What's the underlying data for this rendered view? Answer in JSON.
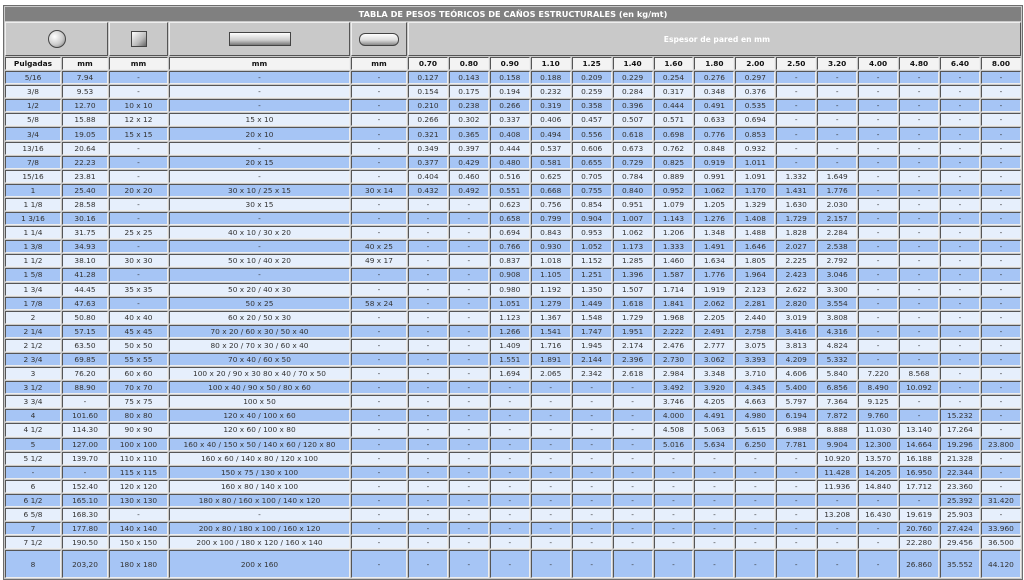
{
  "title": "TABLA DE PESOS TEÓRICOS DE CAÑOS ESTRUCTURALES (en kg/mt)",
  "icons": [
    "circle-profile-icon",
    "square-profile-icon",
    "rectangular-profile-icon",
    "oval-profile-icon"
  ],
  "espesor_label": "Espesor de pared en mm",
  "headers": {
    "pulgadas": "Pulgadas",
    "mm_redondo": "mm",
    "mm_cuadrado": "mm",
    "mm_rectangular": "mm",
    "mm_oval": "mm",
    "espesores": [
      "0.70",
      "0.80",
      "0.90",
      "1.10",
      "1.25",
      "1.40",
      "1.60",
      "1.80",
      "2.00",
      "2.50",
      "3.20",
      "4.00",
      "4.80",
      "6.40",
      "8.00"
    ]
  },
  "colors": {
    "row_odd": "#a6c5f5",
    "row_even": "#e6effc",
    "title_bg": "#808080",
    "header_bg": "#c9c9c9"
  },
  "rows": [
    {
      "pulgadas": "5/16",
      "mm": "7.94",
      "cuadrado": "-",
      "rectangular": "-",
      "oval": "-",
      "pesos": [
        "0.127",
        "0.143",
        "0.158",
        "0.188",
        "0.209",
        "0.229",
        "0.254",
        "0.276",
        "0.297",
        "-",
        "-",
        "-",
        "-",
        "-",
        "-"
      ]
    },
    {
      "pulgadas": "3/8",
      "mm": "9.53",
      "cuadrado": "-",
      "rectangular": "-",
      "oval": "-",
      "pesos": [
        "0.154",
        "0.175",
        "0.194",
        "0.232",
        "0.259",
        "0.284",
        "0.317",
        "0.348",
        "0.376",
        "-",
        "-",
        "-",
        "-",
        "-",
        "-"
      ]
    },
    {
      "pulgadas": "1/2",
      "mm": "12.70",
      "cuadrado": "10 x 10",
      "rectangular": "-",
      "oval": "-",
      "pesos": [
        "0.210",
        "0.238",
        "0.266",
        "0.319",
        "0.358",
        "0.396",
        "0.444",
        "0.491",
        "0.535",
        "-",
        "-",
        "-",
        "-",
        "-",
        "-"
      ]
    },
    {
      "pulgadas": "5/8",
      "mm": "15.88",
      "cuadrado": "12 x 12",
      "rectangular": "15 x 10",
      "oval": "-",
      "pesos": [
        "0.266",
        "0.302",
        "0.337",
        "0.406",
        "0.457",
        "0.507",
        "0.571",
        "0.633",
        "0.694",
        "-",
        "-",
        "-",
        "-",
        "-",
        "-"
      ]
    },
    {
      "pulgadas": "3/4",
      "mm": "19.05",
      "cuadrado": "15 x 15",
      "rectangular": "20 x 10",
      "oval": "-",
      "pesos": [
        "0.321",
        "0.365",
        "0.408",
        "0.494",
        "0.556",
        "0.618",
        "0.698",
        "0.776",
        "0.853",
        "-",
        "-",
        "-",
        "-",
        "-",
        "-"
      ]
    },
    {
      "pulgadas": "13/16",
      "mm": "20.64",
      "cuadrado": "-",
      "rectangular": "-",
      "oval": "-",
      "pesos": [
        "0.349",
        "0.397",
        "0.444",
        "0.537",
        "0.606",
        "0.673",
        "0.762",
        "0.848",
        "0.932",
        "-",
        "-",
        "-",
        "-",
        "-",
        "-"
      ]
    },
    {
      "pulgadas": "7/8",
      "mm": "22.23",
      "cuadrado": "-",
      "rectangular": "20 x 15",
      "oval": "-",
      "pesos": [
        "0.377",
        "0.429",
        "0.480",
        "0.581",
        "0.655",
        "0.729",
        "0.825",
        "0.919",
        "1.011",
        "-",
        "-",
        "-",
        "-",
        "-",
        "-"
      ]
    },
    {
      "pulgadas": "15/16",
      "mm": "23.81",
      "cuadrado": "-",
      "rectangular": "-",
      "oval": "-",
      "pesos": [
        "0.404",
        "0.460",
        "0.516",
        "0.625",
        "0.705",
        "0.784",
        "0.889",
        "0.991",
        "1.091",
        "1.332",
        "1.649",
        "-",
        "-",
        "-",
        "-"
      ]
    },
    {
      "pulgadas": "1",
      "mm": "25.40",
      "cuadrado": "20 x 20",
      "rectangular": "30 x 10 / 25 x 15",
      "oval": "30 x 14",
      "pesos": [
        "0.432",
        "0.492",
        "0.551",
        "0.668",
        "0.755",
        "0.840",
        "0.952",
        "1.062",
        "1.170",
        "1.431",
        "1.776",
        "-",
        "-",
        "-",
        "-"
      ]
    },
    {
      "pulgadas": "1 1/8",
      "mm": "28.58",
      "cuadrado": "-",
      "rectangular": "30 x 15",
      "oval": "-",
      "pesos": [
        "-",
        "-",
        "0.623",
        "0.756",
        "0.854",
        "0.951",
        "1.079",
        "1.205",
        "1.329",
        "1.630",
        "2.030",
        "-",
        "-",
        "-",
        "-"
      ]
    },
    {
      "pulgadas": "1 3/16",
      "mm": "30.16",
      "cuadrado": "-",
      "rectangular": "-",
      "oval": "-",
      "pesos": [
        "-",
        "-",
        "0.658",
        "0.799",
        "0.904",
        "1.007",
        "1.143",
        "1.276",
        "1.408",
        "1.729",
        "2.157",
        "-",
        "-",
        "-",
        "-"
      ]
    },
    {
      "pulgadas": "1 1/4",
      "mm": "31.75",
      "cuadrado": "25 x 25",
      "rectangular": "40 x 10 / 30 x 20",
      "oval": "-",
      "pesos": [
        "-",
        "-",
        "0.694",
        "0.843",
        "0.953",
        "1.062",
        "1.206",
        "1.348",
        "1.488",
        "1.828",
        "2.284",
        "-",
        "-",
        "-",
        "-"
      ]
    },
    {
      "pulgadas": "1 3/8",
      "mm": "34.93",
      "cuadrado": "-",
      "rectangular": "-",
      "oval": "40 x 25",
      "pesos": [
        "-",
        "-",
        "0.766",
        "0.930",
        "1.052",
        "1.173",
        "1.333",
        "1.491",
        "1.646",
        "2.027",
        "2.538",
        "-",
        "-",
        "-",
        "-"
      ]
    },
    {
      "pulgadas": "1 1/2",
      "mm": "38.10",
      "cuadrado": "30 x 30",
      "rectangular": "50 x 10 / 40 x 20",
      "oval": "49 x 17",
      "pesos": [
        "-",
        "-",
        "0.837",
        "1.018",
        "1.152",
        "1.285",
        "1.460",
        "1.634",
        "1.805",
        "2.225",
        "2.792",
        "-",
        "-",
        "-",
        "-"
      ]
    },
    {
      "pulgadas": "1 5/8",
      "mm": "41.28",
      "cuadrado": "-",
      "rectangular": "-",
      "oval": "-",
      "pesos": [
        "-",
        "-",
        "0.908",
        "1.105",
        "1.251",
        "1.396",
        "1.587",
        "1.776",
        "1.964",
        "2.423",
        "3.046",
        "-",
        "-",
        "-",
        "-"
      ]
    },
    {
      "pulgadas": "1 3/4",
      "mm": "44.45",
      "cuadrado": "35 x 35",
      "rectangular": "50 x 20 / 40 x 30",
      "oval": "-",
      "pesos": [
        "-",
        "-",
        "0.980",
        "1.192",
        "1.350",
        "1.507",
        "1.714",
        "1.919",
        "2.123",
        "2.622",
        "3.300",
        "-",
        "-",
        "-",
        "-"
      ]
    },
    {
      "pulgadas": "1 7/8",
      "mm": "47.63",
      "cuadrado": "-",
      "rectangular": "50 x 25",
      "oval": "58 x 24",
      "pesos": [
        "-",
        "-",
        "1.051",
        "1.279",
        "1.449",
        "1.618",
        "1.841",
        "2.062",
        "2.281",
        "2.820",
        "3.554",
        "-",
        "-",
        "-",
        "-"
      ]
    },
    {
      "pulgadas": "2",
      "mm": "50.80",
      "cuadrado": "40 x 40",
      "rectangular": "60 x 20 / 50 x 30",
      "oval": "-",
      "pesos": [
        "-",
        "-",
        "1.123",
        "1.367",
        "1.548",
        "1.729",
        "1.968",
        "2.205",
        "2.440",
        "3.019",
        "3.808",
        "-",
        "-",
        "-",
        "-"
      ]
    },
    {
      "pulgadas": "2 1/4",
      "mm": "57.15",
      "cuadrado": "45 x 45",
      "rectangular": "70 x 20 / 60 x 30 / 50 x 40",
      "oval": "-",
      "pesos": [
        "-",
        "-",
        "1.266",
        "1.541",
        "1.747",
        "1.951",
        "2.222",
        "2.491",
        "2.758",
        "3.416",
        "4.316",
        "-",
        "-",
        "-",
        "-"
      ]
    },
    {
      "pulgadas": "2 1/2",
      "mm": "63.50",
      "cuadrado": "50 x 50",
      "rectangular": "80 x 20 / 70 x 30 / 60 x 40",
      "oval": "-",
      "pesos": [
        "-",
        "-",
        "1.409",
        "1.716",
        "1.945",
        "2.174",
        "2.476",
        "2.777",
        "3.075",
        "3.813",
        "4.824",
        "-",
        "-",
        "-",
        "-"
      ]
    },
    {
      "pulgadas": "2 3/4",
      "mm": "69.85",
      "cuadrado": "55 x 55",
      "rectangular": "70 x 40 / 60 x 50",
      "oval": "-",
      "pesos": [
        "-",
        "-",
        "1.551",
        "1.891",
        "2.144",
        "2.396",
        "2.730",
        "3.062",
        "3.393",
        "4.209",
        "5.332",
        "-",
        "-",
        "-",
        "-"
      ]
    },
    {
      "pulgadas": "3",
      "mm": "76.20",
      "cuadrado": "60 x 60",
      "rectangular": "100 x 20 / 90 x 30 80 x 40 / 70 x 50",
      "oval": "-",
      "pesos": [
        "-",
        "-",
        "1.694",
        "2.065",
        "2.342",
        "2.618",
        "2.984",
        "3.348",
        "3.710",
        "4.606",
        "5.840",
        "7.220",
        "8.568",
        "-",
        "-"
      ]
    },
    {
      "pulgadas": "3 1/2",
      "mm": "88.90",
      "cuadrado": "70 x 70",
      "rectangular": "100 x 40 / 90 x 50 / 80 x 60",
      "oval": "-",
      "pesos": [
        "-",
        "-",
        "-",
        "-",
        "-",
        "-",
        "3.492",
        "3.920",
        "4.345",
        "5.400",
        "6.856",
        "8.490",
        "10.092",
        "-",
        "-"
      ]
    },
    {
      "pulgadas": "3 3/4",
      "mm": "-",
      "cuadrado": "75 x 75",
      "rectangular": "100 x 50",
      "oval": "-",
      "pesos": [
        "-",
        "-",
        "-",
        "-",
        "-",
        "-",
        "3.746",
        "4.205",
        "4.663",
        "5.797",
        "7.364",
        "9.125",
        "-",
        "-",
        "-"
      ]
    },
    {
      "pulgadas": "4",
      "mm": "101.60",
      "cuadrado": "80 x 80",
      "rectangular": "120 x 40 / 100 x 60",
      "oval": "-",
      "pesos": [
        "-",
        "-",
        "-",
        "-",
        "-",
        "-",
        "4.000",
        "4.491",
        "4.980",
        "6.194",
        "7.872",
        "9.760",
        "-",
        "15.232",
        "-"
      ]
    },
    {
      "pulgadas": "4 1/2",
      "mm": "114.30",
      "cuadrado": "90 x 90",
      "rectangular": "120 x 60 / 100 x 80",
      "oval": "-",
      "pesos": [
        "-",
        "-",
        "-",
        "-",
        "-",
        "-",
        "4.508",
        "5.063",
        "5.615",
        "6.988",
        "8.888",
        "11.030",
        "13.140",
        "17.264",
        "-"
      ]
    },
    {
      "pulgadas": "5",
      "mm": "127.00",
      "cuadrado": "100 x 100",
      "rectangular": "160 x 40 / 150 x 50 / 140 x 60 / 120 x 80",
      "oval": "-",
      "pesos": [
        "-",
        "-",
        "-",
        "-",
        "-",
        "-",
        "5.016",
        "5.634",
        "6.250",
        "7.781",
        "9.904",
        "12.300",
        "14.664",
        "19.296",
        "23.800"
      ]
    },
    {
      "pulgadas": "5 1/2",
      "mm": "139.70",
      "cuadrado": "110 x 110",
      "rectangular": "160 x 60 / 140 x 80 / 120 x 100",
      "oval": "-",
      "pesos": [
        "-",
        "-",
        "-",
        "-",
        "-",
        "-",
        "-",
        "-",
        "-",
        "-",
        "10.920",
        "13.570",
        "16.188",
        "21.328",
        "-"
      ]
    },
    {
      "pulgadas": "-",
      "mm": "-",
      "cuadrado": "115 x 115",
      "rectangular": "150 x 75 / 130 x 100",
      "oval": "-",
      "pesos": [
        "-",
        "-",
        "-",
        "-",
        "-",
        "-",
        "-",
        "-",
        "-",
        "-",
        "11.428",
        "14.205",
        "16.950",
        "22.344",
        "-"
      ]
    },
    {
      "pulgadas": "6",
      "mm": "152.40",
      "cuadrado": "120 x 120",
      "rectangular": "160 x 80 / 140 x 100",
      "oval": "-",
      "pesos": [
        "-",
        "-",
        "-",
        "-",
        "-",
        "-",
        "-",
        "-",
        "-",
        "-",
        "11.936",
        "14.840",
        "17.712",
        "23.360",
        "-"
      ]
    },
    {
      "pulgadas": "6 1/2",
      "mm": "165.10",
      "cuadrado": "130 x 130",
      "rectangular": "180 x 80 / 160 x 100 / 140 x 120",
      "oval": "-",
      "pesos": [
        "-",
        "-",
        "-",
        "-",
        "-",
        "-",
        "-",
        "-",
        "-",
        "-",
        "-",
        "-",
        "-",
        "25.392",
        "31.420"
      ]
    },
    {
      "pulgadas": "6 5/8",
      "mm": "168.30",
      "cuadrado": "-",
      "rectangular": "-",
      "oval": "-",
      "pesos": [
        "-",
        "-",
        "-",
        "-",
        "-",
        "-",
        "-",
        "-",
        "-",
        "-",
        "13.208",
        "16.430",
        "19.619",
        "25.903",
        "-"
      ]
    },
    {
      "pulgadas": "7",
      "mm": "177.80",
      "cuadrado": "140 x 140",
      "rectangular": "200 x 80 / 180 x 100 / 160 x 120",
      "oval": "-",
      "pesos": [
        "-",
        "-",
        "-",
        "-",
        "-",
        "-",
        "-",
        "-",
        "-",
        "-",
        "-",
        "-",
        "20.760",
        "27.424",
        "33.960"
      ]
    },
    {
      "pulgadas": "7 1/2",
      "mm": "190.50",
      "cuadrado": "150 x 150",
      "rectangular": "200 x 100 / 180 x 120 / 160 x 140",
      "oval": "-",
      "pesos": [
        "-",
        "-",
        "-",
        "-",
        "-",
        "-",
        "-",
        "-",
        "-",
        "-",
        "-",
        "-",
        "22.280",
        "29.456",
        "36.500"
      ]
    },
    {
      "pulgadas": "8",
      "mm": "203,20",
      "cuadrado": "180 x 180",
      "rectangular": "200 x 160",
      "oval": "-",
      "pesos": [
        "-",
        "-",
        "-",
        "-",
        "-",
        "-",
        "-",
        "-",
        "-",
        "-",
        "-",
        "-",
        "26.860",
        "35.552",
        "44.120"
      ]
    }
  ]
}
